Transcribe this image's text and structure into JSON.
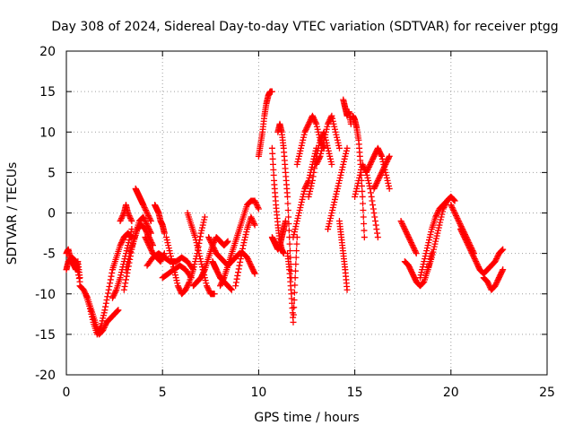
{
  "chart_data": {
    "type": "scatter",
    "title": "Day 308 of 2024, Sidereal Day-to-day VTEC variation (SDTVAR) for receiver ptgg",
    "xlabel": "GPS time / hours",
    "ylabel": "SDTVAR / TECUs",
    "xlim": [
      0,
      25
    ],
    "ylim": [
      -20,
      20
    ],
    "x_ticks": [
      0,
      5,
      10,
      15,
      20,
      25
    ],
    "y_ticks": [
      -20,
      -15,
      -10,
      -5,
      0,
      5,
      10,
      15,
      20
    ],
    "grid": true,
    "legend": "none",
    "marker": "+",
    "color": "#ff0000",
    "series": [
      {
        "name": "s01",
        "x": [
          0.0,
          0.1,
          0.2,
          0.3,
          0.4,
          0.5,
          0.6,
          0.7
        ],
        "y": [
          -5,
          -4.5,
          -5.5,
          -6,
          -6.5,
          -7,
          -6,
          -8
        ]
      },
      {
        "name": "s02",
        "x": [
          0.0,
          0.1,
          0.3,
          0.5,
          0.7
        ],
        "y": [
          -7,
          -6,
          -5.5,
          -6,
          -8.5
        ]
      },
      {
        "name": "s03",
        "x": [
          0.7,
          0.9,
          1.1,
          1.3,
          1.5,
          1.7,
          1.9,
          2.1,
          2.3,
          2.5,
          2.7
        ],
        "y": [
          -9,
          -9.5,
          -10.5,
          -12,
          -13.5,
          -15,
          -14.5,
          -13.5,
          -13,
          -12.5,
          -12
        ]
      },
      {
        "name": "s04",
        "x": [
          1.0,
          1.2,
          1.4,
          1.6,
          1.8,
          2.0,
          2.2,
          2.4,
          2.6,
          2.8,
          3.0,
          3.2,
          3.4
        ],
        "y": [
          -10,
          -11.5,
          -13.5,
          -15,
          -14,
          -12,
          -9.5,
          -7,
          -5.5,
          -4,
          -3,
          -2.5,
          -3
        ]
      },
      {
        "name": "s05",
        "x": [
          2.4,
          2.6,
          2.8,
          3.0,
          3.2,
          3.4
        ],
        "y": [
          -10.5,
          -9.5,
          -8,
          -6,
          -4,
          -2
        ]
      },
      {
        "name": "s06",
        "x": [
          2.8,
          3.0,
          3.1,
          3.2,
          3.4
        ],
        "y": [
          -1,
          0,
          1,
          0,
          -1
        ]
      },
      {
        "name": "s07",
        "x": [
          3.1,
          3.3,
          3.5,
          3.7,
          3.9,
          4.1,
          4.3,
          4.5
        ],
        "y": [
          -7,
          -5,
          -3.5,
          -2,
          -1.5,
          -2,
          -3,
          -4
        ]
      },
      {
        "name": "s08",
        "x": [
          3.0,
          3.2,
          3.4,
          3.6,
          3.8,
          4.0,
          4.2,
          4.4
        ],
        "y": [
          -9.5,
          -7,
          -4.5,
          -2.5,
          -1,
          -0.5,
          -1.5,
          -2.5
        ]
      },
      {
        "name": "s09",
        "x": [
          3.6,
          3.7,
          3.8,
          3.9,
          4.0,
          4.2,
          4.4
        ],
        "y": [
          3,
          2.5,
          2,
          1.5,
          1,
          0,
          -1
        ]
      },
      {
        "name": "s10",
        "x": [
          4.1,
          4.3,
          4.5,
          4.7,
          4.9,
          5.1
        ],
        "y": [
          -3,
          -4,
          -5,
          -5.5,
          -6,
          -5
        ]
      },
      {
        "name": "s11",
        "x": [
          4.6,
          4.7,
          4.8,
          4.9,
          5.0,
          5.1
        ],
        "y": [
          1,
          0.5,
          0,
          -1,
          -1.5,
          -2.5
        ]
      },
      {
        "name": "s12",
        "x": [
          4.2,
          4.5,
          4.8,
          5.1,
          5.4,
          5.7,
          6.0,
          6.3,
          6.6
        ],
        "y": [
          -6.5,
          -5.5,
          -5,
          -5.5,
          -6,
          -6,
          -5.5,
          -6,
          -7
        ]
      },
      {
        "name": "s13",
        "x": [
          5.0,
          5.3,
          5.6,
          5.9,
          6.2,
          6.5
        ],
        "y": [
          -8,
          -7.5,
          -7,
          -6.5,
          -7,
          -8
        ]
      },
      {
        "name": "s14",
        "x": [
          5.2,
          5.4,
          5.6,
          5.8,
          6.0,
          6.2,
          6.4,
          6.6,
          6.8,
          7.0,
          7.2
        ],
        "y": [
          -3,
          -5,
          -7,
          -9,
          -10,
          -9.5,
          -8.5,
          -7,
          -5,
          -2.5,
          -0.5
        ]
      },
      {
        "name": "s15",
        "x": [
          6.3,
          6.5,
          6.7,
          6.9,
          7.1,
          7.3,
          7.5,
          7.7
        ],
        "y": [
          0,
          -1.5,
          -3,
          -5,
          -7,
          -9,
          -10,
          -10
        ]
      },
      {
        "name": "s16",
        "x": [
          6.6,
          6.8,
          7.0,
          7.2,
          7.4,
          7.6,
          7.8,
          8.0,
          8.2,
          8.4
        ],
        "y": [
          -9,
          -8.5,
          -8,
          -7,
          -5.5,
          -4,
          -3,
          -3.5,
          -4,
          -3.5
        ]
      },
      {
        "name": "s17",
        "x": [
          7.6,
          7.7,
          7.8,
          8.0,
          8.2,
          8.4,
          8.6
        ],
        "y": [
          -6,
          -6.5,
          -7,
          -8,
          -8.5,
          -9,
          -9.5
        ]
      },
      {
        "name": "s18",
        "x": [
          7.4,
          7.6,
          7.8,
          8.0,
          8.2,
          8.4,
          8.6,
          8.8,
          9.0,
          9.2,
          9.4,
          9.6,
          9.8
        ],
        "y": [
          -3,
          -4,
          -5,
          -5.5,
          -6,
          -6.5,
          -6,
          -5.5,
          -5,
          -5,
          -5.5,
          -6.5,
          -7.5
        ]
      },
      {
        "name": "s19",
        "x": [
          8.0,
          8.2,
          8.4,
          8.6,
          8.8,
          9.0,
          9.2,
          9.4,
          9.6,
          9.8,
          10.0
        ],
        "y": [
          -9,
          -8,
          -6.5,
          -5,
          -3.5,
          -2,
          -0.5,
          1,
          1.5,
          1.5,
          0.5
        ]
      },
      {
        "name": "s20",
        "x": [
          8.8,
          9.0,
          9.2,
          9.4,
          9.6,
          9.8
        ],
        "y": [
          -9,
          -6.5,
          -4,
          -2,
          -0.5,
          -1.5
        ]
      },
      {
        "name": "s21",
        "x": [
          10.0,
          10.1,
          10.2,
          10.3,
          10.4,
          10.5,
          10.6,
          10.7
        ],
        "y": [
          7,
          8.5,
          10,
          12,
          13.5,
          14.5,
          15,
          15
        ]
      },
      {
        "name": "s22",
        "x": [
          10.7,
          10.8,
          10.9,
          11.0,
          11.1,
          11.2,
          11.3
        ],
        "y": [
          8,
          4,
          1,
          -1.5,
          -3.5,
          -4.5,
          -5
        ]
      },
      {
        "name": "s23",
        "x": [
          10.7,
          10.8,
          10.9,
          11.0,
          11.1,
          11.2,
          11.3,
          11.4
        ],
        "y": [
          -3,
          -3.5,
          -4,
          -4.5,
          -4,
          -3,
          -2,
          -1
        ]
      },
      {
        "name": "s24",
        "x": [
          11.0,
          11.1,
          11.2,
          11.3,
          11.4,
          11.5,
          11.6,
          11.7
        ],
        "y": [
          10,
          11,
          10,
          8,
          5,
          2,
          -3,
          -8
        ]
      },
      {
        "name": "s25",
        "x": [
          11.5,
          11.6,
          11.7,
          11.8,
          11.9,
          12.0
        ],
        "y": [
          -5,
          -7,
          -10,
          -13.5,
          -8,
          -3
        ]
      },
      {
        "name": "s26",
        "x": [
          11.8,
          12.0,
          12.2,
          12.4,
          12.6,
          12.8,
          13.0
        ],
        "y": [
          -3,
          -1,
          1,
          3,
          4,
          6,
          8
        ]
      },
      {
        "name": "s27",
        "x": [
          12.0,
          12.2,
          12.4,
          12.6,
          12.8,
          13.0,
          13.2,
          13.4
        ],
        "y": [
          6,
          8,
          10,
          11,
          12,
          11,
          9,
          8
        ]
      },
      {
        "name": "s28",
        "x": [
          12.6,
          12.8,
          13.0,
          13.2,
          13.4,
          13.6,
          13.8
        ],
        "y": [
          2,
          4,
          7,
          9,
          10,
          8,
          6
        ]
      },
      {
        "name": "s29",
        "x": [
          13.0,
          13.2,
          13.4,
          13.6,
          13.8,
          14.0,
          14.2
        ],
        "y": [
          6,
          7,
          9,
          11,
          12,
          10,
          8
        ]
      },
      {
        "name": "s30",
        "x": [
          13.6,
          13.8,
          14.0,
          14.2,
          14.4,
          14.6
        ],
        "y": [
          -2,
          0,
          2,
          4,
          6,
          8
        ]
      },
      {
        "name": "s31",
        "x": [
          14.2,
          14.3,
          14.4,
          14.5,
          14.6
        ],
        "y": [
          -1,
          -3,
          -5,
          -7,
          -9.5
        ]
      },
      {
        "name": "s32",
        "x": [
          14.4,
          14.5,
          14.6,
          14.7,
          14.8
        ],
        "y": [
          14,
          13,
          12,
          12.5,
          11
        ]
      },
      {
        "name": "s33",
        "x": [
          14.9,
          15.0,
          15.1,
          15.2,
          15.3,
          15.4,
          15.5
        ],
        "y": [
          12,
          11.5,
          10.5,
          9,
          6,
          2,
          -3
        ]
      },
      {
        "name": "s34",
        "x": [
          15.0,
          15.2,
          15.4,
          15.6,
          15.8,
          16.0,
          16.2
        ],
        "y": [
          2,
          4,
          6,
          5,
          3,
          0,
          -3
        ]
      },
      {
        "name": "s35",
        "x": [
          15.6,
          15.8,
          16.0,
          16.2,
          16.4,
          16.6,
          16.8
        ],
        "y": [
          5,
          6,
          7,
          8,
          7,
          5,
          3
        ]
      },
      {
        "name": "s36",
        "x": [
          16.0,
          16.2,
          16.4,
          16.6,
          16.8
        ],
        "y": [
          3,
          4,
          5,
          6,
          7
        ]
      },
      {
        "name": "s37",
        "x": [
          17.4,
          17.6,
          17.8,
          18.0,
          18.2
        ],
        "y": [
          -1,
          -2,
          -3,
          -4,
          -5
        ]
      },
      {
        "name": "s38",
        "x": [
          17.6,
          17.8,
          18.0,
          18.2,
          18.4,
          18.6,
          18.8,
          19.0
        ],
        "y": [
          -6,
          -6.5,
          -7.5,
          -8.5,
          -9,
          -8.5,
          -7,
          -5
        ]
      },
      {
        "name": "s39",
        "x": [
          18.4,
          18.6,
          18.8,
          19.0,
          19.2,
          19.4,
          19.6,
          19.8,
          20.0
        ],
        "y": [
          -8,
          -6,
          -4,
          -2,
          -0.5,
          0.5,
          1,
          1.5,
          2
        ]
      },
      {
        "name": "s40",
        "x": [
          18.8,
          19.0,
          19.2,
          19.4,
          19.6,
          19.8,
          20.0,
          20.2
        ],
        "y": [
          -7,
          -5.5,
          -3.5,
          -1.5,
          0.5,
          1.5,
          2,
          1.5
        ]
      },
      {
        "name": "s41",
        "x": [
          20.0,
          20.2,
          20.4,
          20.6,
          20.8,
          21.0,
          21.2
        ],
        "y": [
          1,
          0,
          -1,
          -2,
          -3,
          -4,
          -5
        ]
      },
      {
        "name": "s42",
        "x": [
          20.5,
          20.7,
          20.9,
          21.1,
          21.3,
          21.5,
          21.7,
          21.9,
          22.1,
          22.3,
          22.5,
          22.7
        ],
        "y": [
          -2,
          -3,
          -4,
          -5,
          -6,
          -7,
          -7.5,
          -7,
          -6.5,
          -6,
          -5,
          -4.5
        ]
      },
      {
        "name": "s43",
        "x": [
          21.7,
          21.9,
          22.1,
          22.3,
          22.5,
          22.7
        ],
        "y": [
          -8,
          -8.5,
          -9.5,
          -9,
          -8,
          -7
        ]
      }
    ]
  }
}
